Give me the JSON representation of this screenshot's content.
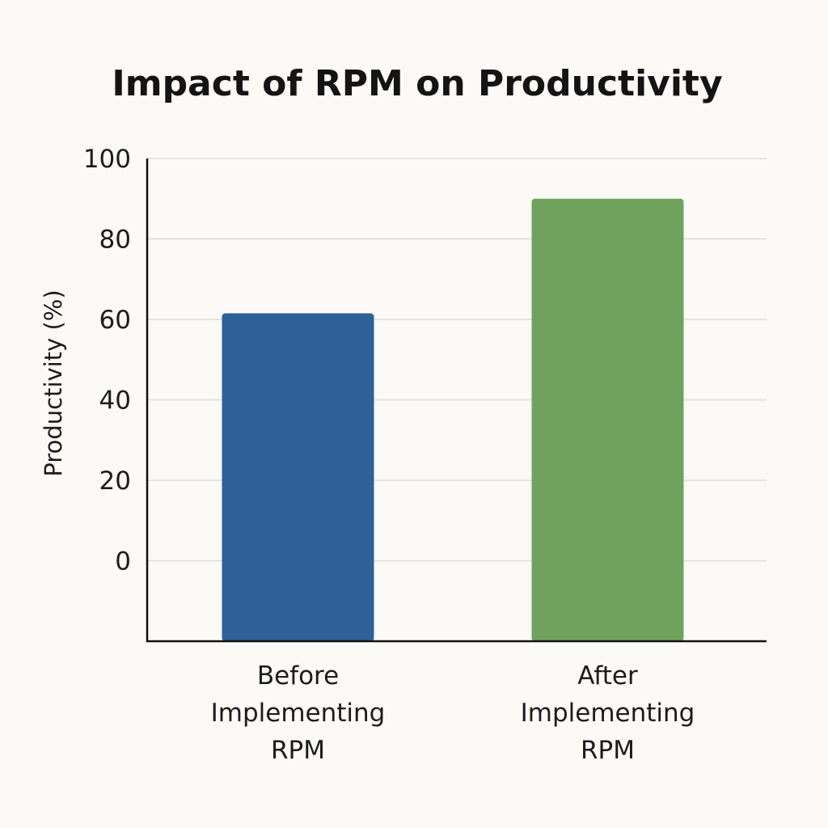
{
  "chart_data": {
    "type": "bar",
    "title": "Impact of RPM on Productivity",
    "xlabel": "",
    "ylabel": "Productivity (%)",
    "ylim": [
      -20,
      100
    ],
    "yticks": [
      0,
      20,
      40,
      60,
      80,
      100
    ],
    "grid": true,
    "categories": [
      [
        "Before",
        "Implementing",
        "RPM"
      ],
      [
        "After",
        "Implementing",
        "RPM"
      ]
    ],
    "values": [
      61.5,
      90
    ],
    "colors": [
      "#2f6199",
      "#6fa35d"
    ]
  }
}
